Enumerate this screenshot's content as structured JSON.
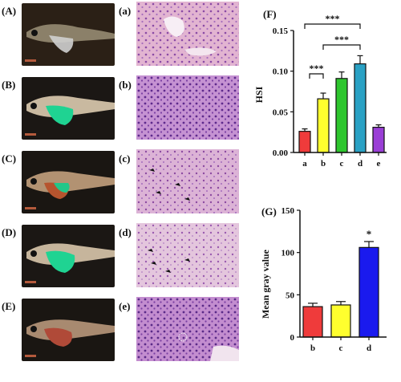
{
  "panels": {
    "fish_labels": [
      "(A)",
      "(B)",
      "(C)",
      "(D)",
      "(E)"
    ],
    "histo_labels": [
      "(a)",
      "(b)",
      "(c)",
      "(d)",
      "(e)"
    ]
  },
  "colors": {
    "a": "#ef3b3b",
    "b": "#ffff2e",
    "c": "#2ec62e",
    "d": "#2aa1c4",
    "e": "#9a3fd6",
    "g_b": "#ef3b3b",
    "g_c": "#ffff2e",
    "g_d": "#1a1aee"
  },
  "chart_data": [
    {
      "type": "bar",
      "panel_label": "(F)",
      "categories": [
        "a",
        "b",
        "c",
        "d",
        "e"
      ],
      "values": [
        0.026,
        0.066,
        0.091,
        0.109,
        0.031
      ],
      "errors": [
        0.003,
        0.007,
        0.008,
        0.01,
        0.003
      ],
      "ylabel": "HSI",
      "ylim": [
        0,
        0.15
      ],
      "yticks": [
        "0.00",
        "0.05",
        "0.10",
        "0.15"
      ],
      "significance": [
        "***",
        "***",
        "***"
      ]
    },
    {
      "type": "bar",
      "panel_label": "(G)",
      "categories": [
        "b",
        "c",
        "d"
      ],
      "values": [
        36,
        38,
        106
      ],
      "errors": [
        4,
        4,
        7
      ],
      "ylabel": "Mean gray value",
      "ylim": [
        0,
        150
      ],
      "yticks": [
        "0",
        "50",
        "100",
        "150"
      ],
      "significance": [
        "*"
      ]
    }
  ]
}
